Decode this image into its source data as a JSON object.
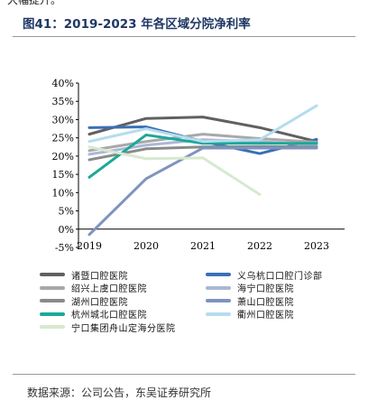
{
  "page": {
    "top_text": "大幅提升。",
    "figure_title": "图41：2019-2023 年各区域分院净利率",
    "source_text": "数据来源：公司公告，东吴证券研究所"
  },
  "chart_data": {
    "type": "line",
    "title": "图41：2019-2023 年各区域分院净利率",
    "xlabel": "",
    "ylabel": "",
    "x": [
      "2019",
      "2020",
      "2021",
      "2022",
      "2023"
    ],
    "ylim": [
      -5,
      40
    ],
    "yticks": [
      -5,
      0,
      5,
      10,
      15,
      20,
      25,
      30,
      35,
      40
    ],
    "ytick_labels": [
      "-5%",
      "0%",
      "5%",
      "10%",
      "15%",
      "20%",
      "25%",
      "30%",
      "35%",
      "40%"
    ],
    "grid": false,
    "legend_position": "bottom",
    "series": [
      {
        "name": "诸暨口腔医院",
        "color": "#606060",
        "values": [
          26.0,
          30.3,
          30.7,
          27.8,
          24.0
        ]
      },
      {
        "name": "义乌杭口口腔门诊部",
        "color": "#3a6fb7",
        "values": [
          27.8,
          28.0,
          24.0,
          20.7,
          24.6
        ]
      },
      {
        "name": "绍兴上虞口腔医院",
        "color": "#a8a8a8",
        "values": [
          21.5,
          24.0,
          26.0,
          24.8,
          23.8
        ]
      },
      {
        "name": "海宁口腔医院",
        "color": "#aab8d4",
        "values": [
          20.5,
          23.0,
          24.5,
          24.0,
          23.0
        ]
      },
      {
        "name": "湖州口腔医院",
        "color": "#8a8a8a",
        "values": [
          19.0,
          22.0,
          22.5,
          22.6,
          22.5
        ]
      },
      {
        "name": "萧山口腔医院",
        "color": "#7f93c1",
        "values": [
          -1.5,
          13.8,
          22.2,
          22.2,
          22.2
        ]
      },
      {
        "name": "杭州城北口腔医院",
        "color": "#1aa99a",
        "values": [
          14.2,
          25.8,
          23.5,
          23.5,
          23.5
        ]
      },
      {
        "name": "衢州口腔医院",
        "color": "#b5dcef",
        "values": [
          24.0,
          27.5,
          24.0,
          24.5,
          33.8
        ]
      },
      {
        "name": "宁口集团舟山定海分医院",
        "color": "#d7e9cf",
        "values": [
          22.5,
          19.3,
          19.5,
          9.5,
          null
        ]
      }
    ]
  }
}
